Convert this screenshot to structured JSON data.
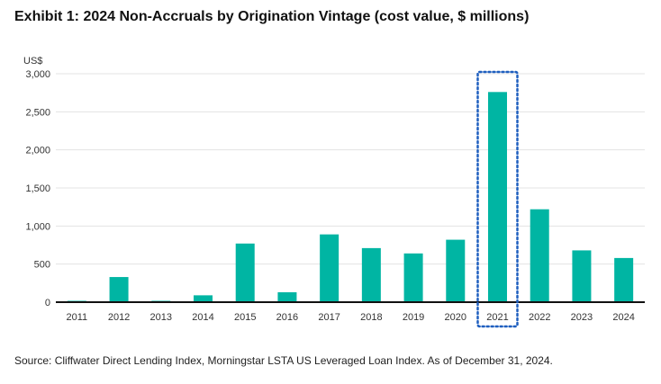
{
  "title": "Exhibit 1: 2024 Non-Accruals by Origination Vintage (cost value, $ millions)",
  "source": "Source: Cliffwater Direct Lending Index, Morningstar LSTA US Leveraged Loan Index. As of December 31, 2024.",
  "colors": {
    "bar": "#00b5a3",
    "highlight_box": "#1f5fbf",
    "grid": "#e3e3e3",
    "axis": "#111111"
  },
  "chart_data": {
    "type": "bar",
    "title": "Exhibit 1: 2024 Non-Accruals by Origination Vintage (cost value, $ millions)",
    "ylabel": "US$",
    "xlabel": "",
    "categories": [
      "2011",
      "2012",
      "2013",
      "2014",
      "2015",
      "2016",
      "2017",
      "2018",
      "2019",
      "2020",
      "2021",
      "2022",
      "2023",
      "2024"
    ],
    "values": [
      5,
      330,
      5,
      90,
      770,
      130,
      890,
      710,
      640,
      820,
      2760,
      1220,
      680,
      580
    ],
    "ylim": [
      0,
      3000
    ],
    "yticks": [
      0,
      500,
      1000,
      1500,
      2000,
      2500,
      3000
    ],
    "ytick_labels": [
      "0",
      "500",
      "1,000",
      "1,500",
      "2,000",
      "2,500",
      "3,000"
    ],
    "grid": true,
    "highlight_category": "2021"
  }
}
